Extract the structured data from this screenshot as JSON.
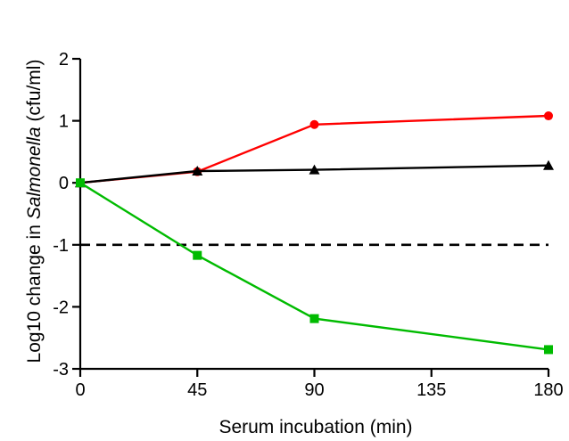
{
  "chart_data": {
    "type": "line",
    "xlabel": "Serum incubation (min)",
    "ylabel": {
      "prefix": "Log10 change in ",
      "organism": "Salmonella",
      "suffix": " (cfu/ml)"
    },
    "xlim": [
      0,
      180
    ],
    "ylim": [
      -3,
      2
    ],
    "xticks": [
      0,
      45,
      90,
      135,
      180
    ],
    "yticks": [
      2,
      1,
      0,
      -1,
      -2,
      -3
    ],
    "grid": false,
    "legend": "none",
    "series": [
      {
        "color": "#ff0000",
        "marker": "circle",
        "x": [
          0,
          45,
          90,
          180
        ],
        "y": [
          0.0,
          0.18,
          0.94,
          1.08
        ]
      },
      {
        "color": "#000000",
        "marker": "triangle",
        "x": [
          0,
          45,
          90,
          180
        ],
        "y": [
          0.0,
          0.19,
          0.21,
          0.28
        ]
      },
      {
        "color": "#00bb00",
        "marker": "square",
        "x": [
          0,
          45,
          90,
          180
        ],
        "y": [
          0.0,
          -1.17,
          -2.19,
          -2.69
        ]
      }
    ],
    "reference_lines": [
      {
        "y": -1,
        "style": "dashed",
        "color": "#000000"
      }
    ]
  }
}
